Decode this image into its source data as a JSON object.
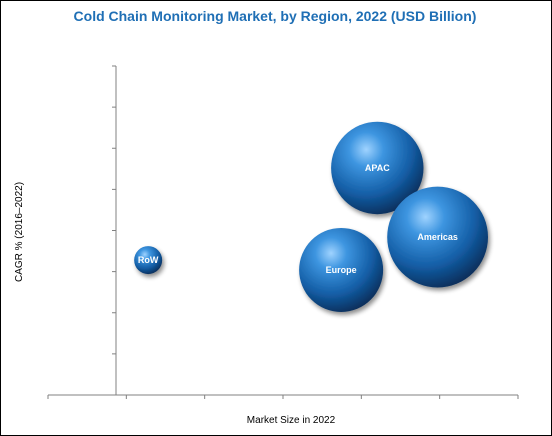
{
  "chart_data": {
    "type": "bubble",
    "title": "Cold Chain Monitoring Market, by Region, 2022 (USD Billion)",
    "xlabel": "Market Size in 2022",
    "ylabel": "CAGR % (2016–2022)",
    "xlim": [
      0,
      10
    ],
    "ylim": [
      0,
      10
    ],
    "grid": false,
    "tick_labels_shown": false,
    "bubble_color": "#1f6fb5",
    "series": [
      {
        "label": "RoW",
        "x": 0.8,
        "y": 4.1,
        "size": 1.0
      },
      {
        "label": "Europe",
        "x": 5.6,
        "y": 3.8,
        "size": 3.0
      },
      {
        "label": "APAC",
        "x": 6.5,
        "y": 6.9,
        "size": 3.3
      },
      {
        "label": "Americas",
        "x": 8.0,
        "y": 4.8,
        "size": 3.6
      }
    ]
  }
}
